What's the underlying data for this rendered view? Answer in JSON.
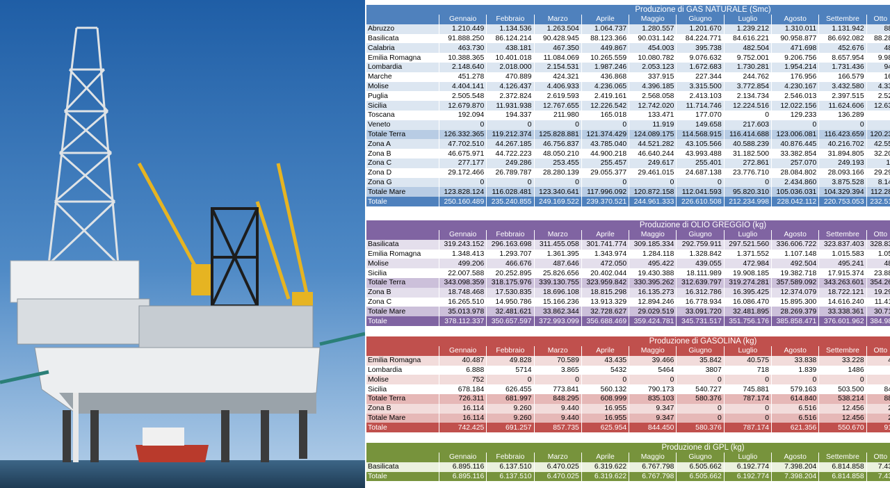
{
  "gas": {
    "title": "Produzione di GAS NATURALE (Smc)",
    "months": [
      "Gennaio",
      "Febbraio",
      "Marzo",
      "Aprile",
      "Maggio",
      "Giugno",
      "Luglio",
      "Agosto",
      "Settembre",
      "Otto"
    ],
    "rows": [
      {
        "label": "Abruzzo",
        "kind": "a",
        "values": [
          "1.210.449",
          "1.134.536",
          "1.263.504",
          "1.064.737",
          "1.280.557",
          "1.201.670",
          "1.239.212",
          "1.310.011",
          "1.131.942",
          "88"
        ]
      },
      {
        "label": "Basilicata",
        "kind": "b",
        "values": [
          "91.888.250",
          "86.124.214",
          "90.428.945",
          "88.123.366",
          "90.031.142",
          "84.224.771",
          "84.616.221",
          "90.958.877",
          "86.692.082",
          "88.28"
        ]
      },
      {
        "label": "Calabria",
        "kind": "a",
        "values": [
          "463.730",
          "438.181",
          "467.350",
          "449.867",
          "454.003",
          "395.738",
          "482.504",
          "471.698",
          "452.676",
          "48"
        ]
      },
      {
        "label": "Emilia Romagna",
        "kind": "b",
        "values": [
          "10.388.365",
          "10.401.018",
          "11.084.069",
          "10.265.559",
          "10.080.782",
          "9.076.632",
          "9.752.001",
          "9.206.756",
          "8.657.954",
          "9.98"
        ]
      },
      {
        "label": "Lombardia",
        "kind": "a",
        "values": [
          "2.148.640",
          "2.018.000",
          "2.154.531",
          "1.987.246",
          "2.053.123",
          "1.672.683",
          "1.730.281",
          "1.954.214",
          "1.731.436",
          "94"
        ]
      },
      {
        "label": "Marche",
        "kind": "b",
        "values": [
          "451.278",
          "470.889",
          "424.321",
          "436.868",
          "337.915",
          "227.344",
          "244.762",
          "176.956",
          "166.579",
          "16"
        ]
      },
      {
        "label": "Molise",
        "kind": "a",
        "values": [
          "4.404.141",
          "4.126.437",
          "4.406.933",
          "4.236.065",
          "4.396.185",
          "3.315.500",
          "3.772.854",
          "4.230.167",
          "3.432.580",
          "4.33"
        ]
      },
      {
        "label": "Puglia",
        "kind": "b",
        "values": [
          "2.505.548",
          "2.372.824",
          "2.619.593",
          "2.419.161",
          "2.568.058",
          "2.413.103",
          "2.134.734",
          "2.546.013",
          "2.397.515",
          "2.52"
        ]
      },
      {
        "label": "Sicilia",
        "kind": "a",
        "values": [
          "12.679.870",
          "11.931.938",
          "12.767.655",
          "12.226.542",
          "12.742.020",
          "11.714.746",
          "12.224.516",
          "12.022.156",
          "11.624.606",
          "12.63"
        ]
      },
      {
        "label": "Toscana",
        "kind": "b",
        "values": [
          "192.094",
          "194.337",
          "211.980",
          "165.018",
          "133.471",
          "177.070",
          "0",
          "129.233",
          "136.289",
          ""
        ]
      },
      {
        "label": "Veneto",
        "kind": "a",
        "values": [
          "0",
          "0",
          "0",
          "0",
          "11.919",
          "149.658",
          "217.603",
          "0",
          "0",
          ""
        ]
      },
      {
        "label": "Totale Terra",
        "kind": "sub",
        "values": [
          "126.332.365",
          "119.212.374",
          "125.828.881",
          "121.374.429",
          "124.089.175",
          "114.568.915",
          "116.414.688",
          "123.006.081",
          "116.423.659",
          "120.23"
        ]
      },
      {
        "label": "Zona A",
        "kind": "a",
        "values": [
          "47.702.510",
          "44.267.185",
          "46.756.837",
          "43.785.040",
          "44.521.282",
          "43.105.566",
          "40.588.239",
          "40.876.445",
          "40.216.702",
          "42.55"
        ]
      },
      {
        "label": "Zona B",
        "kind": "b",
        "values": [
          "46.675.971",
          "44.722.223",
          "48.050.210",
          "44.900.218",
          "46.640.244",
          "43.993.488",
          "31.182.500",
          "33.382.854",
          "31.894.805",
          "32.20"
        ]
      },
      {
        "label": "Zona C",
        "kind": "a",
        "values": [
          "277.177",
          "249.286",
          "253.455",
          "255.457",
          "249.617",
          "255.401",
          "272.861",
          "257.070",
          "249.193",
          "1:"
        ]
      },
      {
        "label": "Zona D",
        "kind": "b",
        "values": [
          "29.172.466",
          "26.789.787",
          "28.280.139",
          "29.055.377",
          "29.461.015",
          "24.687.138",
          "23.776.710",
          "28.084.802",
          "28.093.166",
          "29.29"
        ]
      },
      {
        "label": "Zona G",
        "kind": "a",
        "values": [
          "0",
          "0",
          "0",
          "0",
          "0",
          "0",
          "0",
          "2.434.860",
          "3.875.528",
          "8.14"
        ]
      },
      {
        "label": "Totale Mare",
        "kind": "sub",
        "values": [
          "123.828.124",
          "116.028.481",
          "123.340.641",
          "117.996.092",
          "120.872.158",
          "112.041.593",
          "95.820.310",
          "105.036.031",
          "104.329.394",
          "112.28"
        ]
      },
      {
        "label": "Totale",
        "kind": "tot",
        "values": [
          "250.160.489",
          "235.240.855",
          "249.169.522",
          "239.370.521",
          "244.961.333",
          "226.610.508",
          "212.234.998",
          "228.042.112",
          "220.753.053",
          "232.51"
        ]
      }
    ]
  },
  "oil": {
    "title": "Produzione di OLIO GREGGIO (kg)",
    "months": [
      "Gennaio",
      "Febbraio",
      "Marzo",
      "Aprile",
      "Maggio",
      "Giugno",
      "Luglio",
      "Agosto",
      "Settembre",
      "Otto"
    ],
    "rows": [
      {
        "label": "Basilicata",
        "kind": "a",
        "values": [
          "319.243.152",
          "296.163.698",
          "311.455.058",
          "301.741.774",
          "309.185.334",
          "292.759.911",
          "297.521.560",
          "336.606.722",
          "323.837.403",
          "328.83"
        ]
      },
      {
        "label": "Emilia Romagna",
        "kind": "b",
        "values": [
          "1.348.413",
          "1.293.707",
          "1.361.395",
          "1.343.974",
          "1.284.118",
          "1.328.842",
          "1.371.552",
          "1.107.148",
          "1.015.583",
          "1.05"
        ]
      },
      {
        "label": "Molise",
        "kind": "a",
        "values": [
          "499.206",
          "466.676",
          "487.646",
          "472.050",
          "495.422",
          "439.055",
          "472.984",
          "492.504",
          "495.241",
          "48"
        ]
      },
      {
        "label": "Sicilia",
        "kind": "b",
        "values": [
          "22.007.588",
          "20.252.895",
          "25.826.656",
          "20.402.044",
          "19.430.388",
          "18.111.989",
          "19.908.185",
          "19.382.718",
          "17.915.374",
          "23.88"
        ]
      },
      {
        "label": "Totale Terra",
        "kind": "sub",
        "values": [
          "343.098.359",
          "318.175.976",
          "339.130.755",
          "323.959.842",
          "330.395.262",
          "312.639.797",
          "319.274.281",
          "357.589.092",
          "343.263.601",
          "354.26"
        ]
      },
      {
        "label": "Zona B",
        "kind": "a",
        "values": [
          "18.748.468",
          "17.530.835",
          "18.696.108",
          "18.815.298",
          "16.135.273",
          "16.312.786",
          "16.395.425",
          "12.374.079",
          "18.722.121",
          "19.29"
        ]
      },
      {
        "label": "Zona C",
        "kind": "b",
        "values": [
          "16.265.510",
          "14.950.786",
          "15.166.236",
          "13.913.329",
          "12.894.246",
          "16.778.934",
          "16.086.470",
          "15.895.300",
          "14.616.240",
          "11.41"
        ]
      },
      {
        "label": "Totale Mare",
        "kind": "sub",
        "values": [
          "35.013.978",
          "32.481.621",
          "33.862.344",
          "32.728.627",
          "29.029.519",
          "33.091.720",
          "32.481.895",
          "28.269.379",
          "33.338.361",
          "30.71"
        ]
      },
      {
        "label": "Totale",
        "kind": "tot",
        "values": [
          "378.112.337",
          "350.657.597",
          "372.993.099",
          "356.688.469",
          "359.424.781",
          "345.731.517",
          "351.756.176",
          "385.858.471",
          "376.601.962",
          "384.98"
        ]
      }
    ]
  },
  "gsl": {
    "title": "Produzione di GASOLINA (kg)",
    "months": [
      "Gennaio",
      "Febbraio",
      "Marzo",
      "Aprile",
      "Maggio",
      "Giugno",
      "Luglio",
      "Agosto",
      "Settembre",
      "Otto"
    ],
    "rows": [
      {
        "label": "Emilia Romagna",
        "kind": "a",
        "values": [
          "40.487",
          "49.828",
          "70.589",
          "43.435",
          "39.466",
          "35.842",
          "40.575",
          "33.838",
          "33.228",
          "4"
        ]
      },
      {
        "label": "Lombardia",
        "kind": "b",
        "values": [
          "6.888",
          "5714",
          "3.865",
          "5432",
          "5464",
          "3807",
          "718",
          "1.839",
          "1486",
          ""
        ]
      },
      {
        "label": "Molise",
        "kind": "a",
        "values": [
          "752",
          "0",
          "0",
          "0",
          "0",
          "0",
          "0",
          "0",
          "0",
          ""
        ]
      },
      {
        "label": "Sicilia",
        "kind": "b",
        "values": [
          "678.184",
          "626.455",
          "773.841",
          "560.132",
          "790.173",
          "540.727",
          "745.881",
          "579.163",
          "503.500",
          "84"
        ]
      },
      {
        "label": "Totale Terra",
        "kind": "sub",
        "values": [
          "726.311",
          "681.997",
          "848.295",
          "608.999",
          "835.103",
          "580.376",
          "787.174",
          "614.840",
          "538.214",
          "88"
        ]
      },
      {
        "label": "Zona B",
        "kind": "a",
        "values": [
          "16.114",
          "9.260",
          "9.440",
          "16.955",
          "9.347",
          "0",
          "0",
          "6.516",
          "12.456",
          "2"
        ]
      },
      {
        "label": "Totale Mare",
        "kind": "sub",
        "values": [
          "16.114",
          "9.260",
          "9.440",
          "16.955",
          "9.347",
          "0",
          "0",
          "6.516",
          "12.456",
          "2"
        ]
      },
      {
        "label": "Totale",
        "kind": "tot",
        "values": [
          "742.425",
          "691.257",
          "857.735",
          "625.954",
          "844.450",
          "580.376",
          "787.174",
          "621.356",
          "550.670",
          "91"
        ]
      }
    ]
  },
  "gpl": {
    "title": "Produzione di GPL (kg)",
    "months": [
      "Gennaio",
      "Febbraio",
      "Marzo",
      "Aprile",
      "Maggio",
      "Giugno",
      "Luglio",
      "Agosto",
      "Settembre",
      "Otto"
    ],
    "rows": [
      {
        "label": "Basilicata",
        "kind": "a",
        "values": [
          "6.895.116",
          "6.137.510",
          "6.470.025",
          "6.319.622",
          "6.767.798",
          "6.505.662",
          "6.192.774",
          "7.398.204",
          "6.814.858",
          "7.43"
        ]
      },
      {
        "label": "Totale",
        "kind": "tot",
        "values": [
          "6.895.116",
          "6.137.510",
          "6.470.025",
          "6.319.622",
          "6.767.798",
          "6.505.662",
          "6.192.774",
          "7.398.204",
          "6.814.858",
          "7.43"
        ]
      }
    ]
  },
  "photo": {
    "subject": "offshore-jackup-drilling-rig",
    "colors": {
      "sky": "#2f6fb3",
      "sky_light": "#a9c8e6",
      "sea": "#2c4f6b",
      "structure": "#e8eaec",
      "crane": "#e6b422"
    }
  }
}
